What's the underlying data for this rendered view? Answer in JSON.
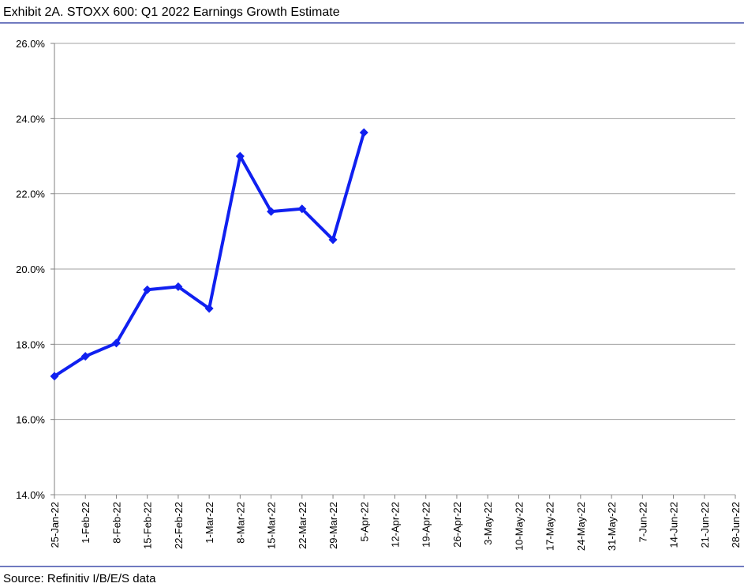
{
  "chart_data": {
    "type": "line",
    "title": "Exhibit 2A.  STOXX 600: Q1 2022 Earnings Growth Estimate",
    "source": "Source: Refinitiv I/B/E/S data",
    "categories": [
      "25-Jan-22",
      "1-Feb-22",
      "8-Feb-22",
      "15-Feb-22",
      "22-Feb-22",
      "1-Mar-22",
      "8-Mar-22",
      "15-Mar-22",
      "22-Mar-22",
      "29-Mar-22",
      "5-Apr-22",
      "12-Apr-22",
      "19-Apr-22",
      "26-Apr-22",
      "3-May-22",
      "10-May-22",
      "17-May-22",
      "24-May-22",
      "31-May-22",
      "7-Jun-22",
      "14-Jun-22",
      "21-Jun-22",
      "28-Jun-22"
    ],
    "series": [
      {
        "color": "#1020f0",
        "values": [
          17.15,
          17.68,
          18.03,
          19.45,
          19.53,
          18.95,
          23.0,
          21.53,
          21.6,
          20.78,
          23.63,
          null,
          null,
          null,
          null,
          null,
          null,
          null,
          null,
          null,
          null,
          null,
          null
        ]
      }
    ],
    "ylim": [
      14,
      26
    ],
    "yticks": [
      {
        "value": 14,
        "label": "14.0%"
      },
      {
        "value": 16,
        "label": "16.0%"
      },
      {
        "value": 18,
        "label": "18.0%"
      },
      {
        "value": 20,
        "label": "20.0%"
      },
      {
        "value": 22,
        "label": "22.0%"
      },
      {
        "value": 24,
        "label": "24.0%"
      },
      {
        "value": 26,
        "label": "26.0%"
      }
    ],
    "grid": true
  }
}
